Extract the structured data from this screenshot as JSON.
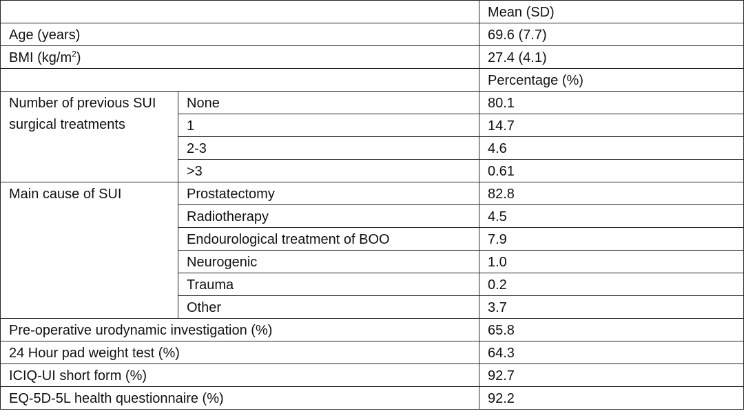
{
  "header": {
    "mean_sd": "Mean (SD)",
    "percentage": "Percentage (%)"
  },
  "demographics": [
    {
      "label": "Age (years)",
      "value": "69.6 (7.7)"
    },
    {
      "label_main": "BMI (kg/m",
      "label_sup": "2",
      "label_end": ")",
      "value": "27.4 (4.1)"
    }
  ],
  "previous_treatments": {
    "label": "Number of previous SUI surgical treatments",
    "rows": [
      {
        "label": "None",
        "value": "80.1"
      },
      {
        "label": "1",
        "value": "14.7"
      },
      {
        "label": "2-3",
        "value": "4.6"
      },
      {
        "label": ">3",
        "value": "0.61"
      }
    ]
  },
  "main_cause": {
    "label": "Main cause of SUI",
    "rows": [
      {
        "label": "Prostatectomy",
        "value": "82.8"
      },
      {
        "label": "Radiotherapy",
        "value": "4.5"
      },
      {
        "label": "Endourological treatment of BOO",
        "value": "7.9"
      },
      {
        "label": "Neurogenic",
        "value": "1.0"
      },
      {
        "label": "Trauma",
        "value": "0.2"
      },
      {
        "label": "Other",
        "value": "3.7"
      }
    ]
  },
  "investigations": [
    {
      "label": "Pre-operative urodynamic investigation (%)",
      "value": "65.8"
    },
    {
      "label": "24 Hour pad weight test (%)",
      "value": "64.3"
    },
    {
      "label": "ICIQ-UI short form (%)",
      "value": "92.7"
    },
    {
      "label": "EQ-5D-5L health questionnaire (%)",
      "value": "92.2"
    }
  ]
}
